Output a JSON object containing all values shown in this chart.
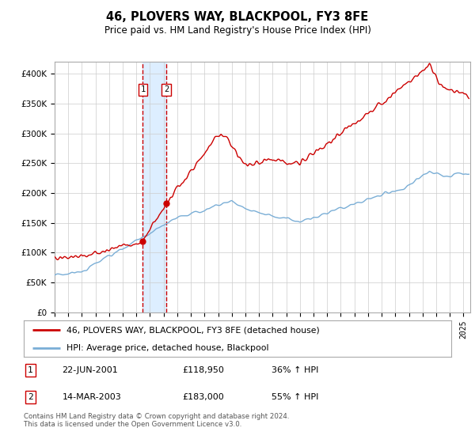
{
  "title": "46, PLOVERS WAY, BLACKPOOL, FY3 8FE",
  "subtitle": "Price paid vs. HM Land Registry's House Price Index (HPI)",
  "legend_line1": "46, PLOVERS WAY, BLACKPOOL, FY3 8FE (detached house)",
  "legend_line2": "HPI: Average price, detached house, Blackpool",
  "footer": "Contains HM Land Registry data © Crown copyright and database right 2024.\nThis data is licensed under the Open Government Licence v3.0.",
  "transaction1_date": "22-JUN-2001",
  "transaction1_price": "£118,950",
  "transaction1_hpi": "36% ↑ HPI",
  "transaction2_date": "14-MAR-2003",
  "transaction2_price": "£183,000",
  "transaction2_hpi": "55% ↑ HPI",
  "transaction1_x": 2001.47,
  "transaction2_x": 2003.2,
  "transaction1_y": 118950,
  "transaction2_y": 183000,
  "red_line_color": "#cc0000",
  "blue_line_color": "#7aaed6",
  "shade_color": "#ddeeff",
  "vline_color": "#cc0000",
  "grid_color": "#cccccc",
  "ylim": [
    0,
    420000
  ],
  "yticks": [
    0,
    50000,
    100000,
    150000,
    200000,
    250000,
    300000,
    350000,
    400000
  ],
  "ytick_labels": [
    "£0",
    "£50K",
    "£100K",
    "£150K",
    "£200K",
    "£250K",
    "£300K",
    "£350K",
    "£400K"
  ],
  "xmin": 1995.0,
  "xmax": 2025.5
}
